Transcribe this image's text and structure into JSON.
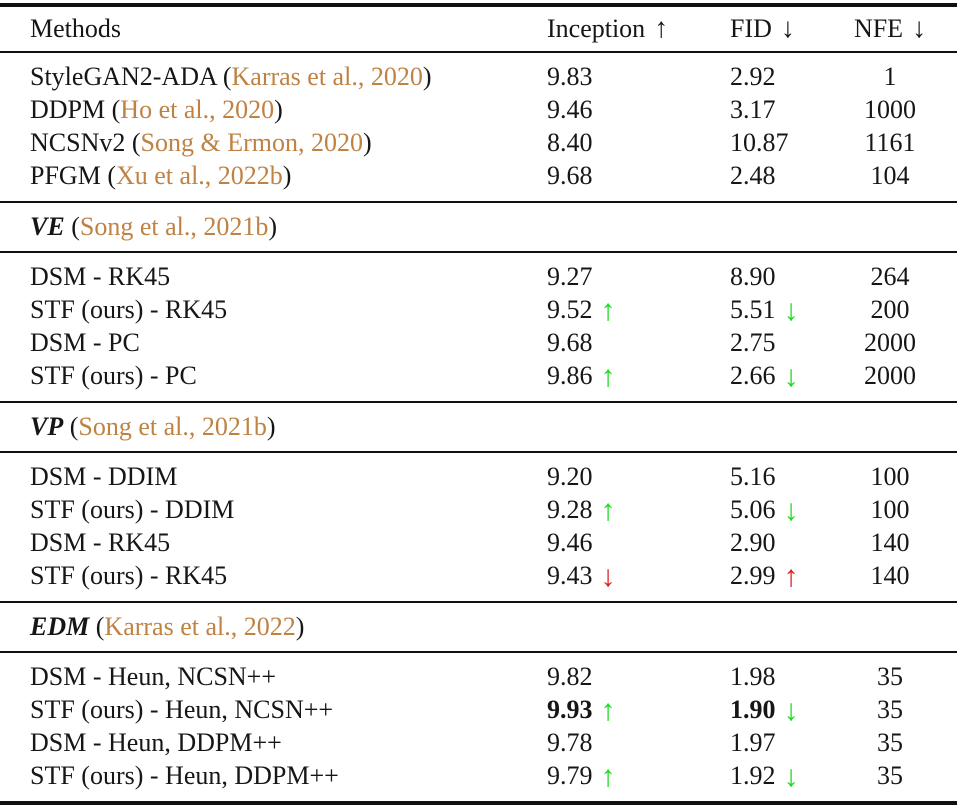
{
  "colors": {
    "citation": "#bf8243",
    "green": "#1ddb1d",
    "red": "#dc2020",
    "text": "#161616"
  },
  "header": {
    "methods": "Methods",
    "columns": [
      {
        "label": "Inception",
        "arrow": "↑"
      },
      {
        "label": "FID",
        "arrow": "↓"
      },
      {
        "label": "NFE",
        "arrow": "↓"
      }
    ]
  },
  "sections": [
    {
      "title": "VE",
      "cite_pre": " (",
      "cite": "Song et al., 2021b",
      "cite_post": ")"
    },
    {
      "title": "VP",
      "cite_pre": " (",
      "cite": "Song et al., 2021b",
      "cite_post": ")"
    },
    {
      "title": "EDM",
      "cite_pre": " (",
      "cite": "Karras et al., 2022",
      "cite_post": ")"
    }
  ],
  "rows": [
    {
      "method_pre": "StyleGAN2-ADA (",
      "cite": "Karras et al., 2020",
      "method_post": ")",
      "inception": "9.83",
      "fid": "2.92",
      "nfe": "1"
    },
    {
      "method_pre": "DDPM (",
      "cite": "Ho et al., 2020",
      "method_post": ")",
      "inception": "9.46",
      "fid": "3.17",
      "nfe": "1000"
    },
    {
      "method_pre": "NCSNv2 (",
      "cite": "Song & Ermon, 2020",
      "method_post": ")",
      "inception": "8.40",
      "fid": "10.87",
      "nfe": "1161"
    },
    {
      "method_pre": "PFGM (",
      "cite": "Xu et al., 2022b",
      "method_post": ")",
      "inception": "9.68",
      "fid": "2.48",
      "nfe": "104"
    },
    {
      "method_pre": "DSM - RK45",
      "inception": "9.27",
      "fid": "8.90",
      "nfe": "264"
    },
    {
      "method_pre": "STF (ours) - RK45",
      "inception": "9.52",
      "inception_arrow": "↑",
      "inception_trend": "green",
      "fid": "5.51",
      "fid_arrow": "↓",
      "fid_trend": "green",
      "nfe": "200"
    },
    {
      "method_pre": "DSM - PC",
      "inception": "9.68",
      "fid": "2.75",
      "nfe": "2000"
    },
    {
      "method_pre": "STF (ours) - PC",
      "inception": "9.86",
      "inception_arrow": "↑",
      "inception_trend": "green",
      "fid": "2.66",
      "fid_arrow": "↓",
      "fid_trend": "green",
      "nfe": "2000"
    },
    {
      "method_pre": "DSM - DDIM",
      "inception": "9.20",
      "fid": "5.16",
      "nfe": "100"
    },
    {
      "method_pre": "STF (ours) - DDIM",
      "inception": "9.28",
      "inception_arrow": "↑",
      "inception_trend": "green",
      "fid": "5.06",
      "fid_arrow": "↓",
      "fid_trend": "green",
      "nfe": "100"
    },
    {
      "method_pre": "DSM - RK45",
      "inception": "9.46",
      "fid": "2.90",
      "nfe": "140"
    },
    {
      "method_pre": "STF (ours) - RK45",
      "inception": "9.43",
      "inception_arrow": "↓",
      "inception_trend": "red",
      "fid": "2.99",
      "fid_arrow": "↑",
      "fid_trend": "red",
      "nfe": "140"
    },
    {
      "method_pre": "DSM - Heun, NCSN++",
      "inception": "9.82",
      "fid": "1.98",
      "nfe": "35"
    },
    {
      "method_pre": "STF (ours) - Heun, NCSN++",
      "inception": "9.93",
      "inception_weight": "bold",
      "inception_arrow": "↑",
      "inception_trend": "green",
      "fid": "1.90",
      "fid_weight": "bold",
      "fid_arrow": "↓",
      "fid_trend": "green",
      "nfe": "35"
    },
    {
      "method_pre": "DSM - Heun, DDPM++",
      "inception": "9.78",
      "fid": "1.97",
      "nfe": "35"
    },
    {
      "method_pre": "STF (ours) - Heun, DDPM++",
      "inception": "9.79",
      "inception_arrow": "↑",
      "inception_trend": "green",
      "fid": "1.92",
      "fid_arrow": "↓",
      "fid_trend": "green",
      "nfe": "35"
    }
  ]
}
